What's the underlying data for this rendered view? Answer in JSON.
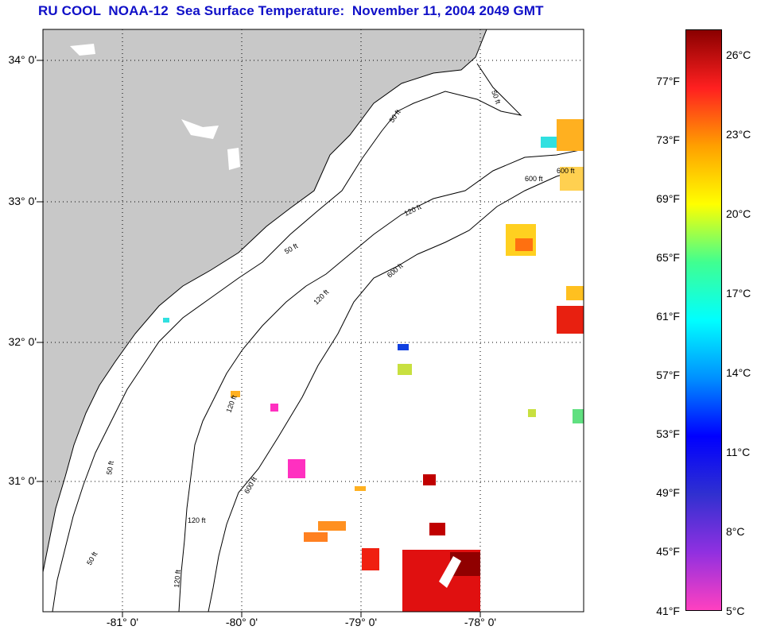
{
  "title": "RU COOL  NOAA-12  Sea Surface Temperature:  November 11, 2004 2049 GMT",
  "map": {
    "lat_labels": [
      "34° 0'",
      "33° 0'",
      "32° 0'",
      "31° 0'"
    ],
    "lon_labels": [
      "-81° 0'",
      "-80° 0'",
      "-79° 0'",
      "-78° 0'"
    ],
    "contour_labels": [
      "50 ft",
      "50 ft",
      "50 ft",
      "50 ft",
      "50 ft",
      "120 ft",
      "120 ft",
      "120 ft",
      "120 ft",
      "120 ft",
      "600 ft",
      "600 ft",
      "600 ft",
      "600 ft"
    ],
    "colors": {
      "land": "#c8c8c8",
      "water": "#ffffff",
      "grid": "#000000",
      "contour": "#000000"
    }
  },
  "colorbar": {
    "fahrenheit_labels": [
      "77°F",
      "73°F",
      "69°F",
      "65°F",
      "61°F",
      "57°F",
      "53°F",
      "49°F",
      "45°F",
      "41°F"
    ],
    "celsius_labels": [
      "26°C",
      "23°C",
      "20°C",
      "17°C",
      "14°C",
      "11°C",
      "8°C",
      "5°C"
    ],
    "stops": [
      "#ff40c0",
      "#9030e0",
      "#3030d0",
      "#0000ff",
      "#0090ff",
      "#00ffff",
      "#40ff90",
      "#ffff00",
      "#ffa000",
      "#ff2020",
      "#8a0000"
    ]
  }
}
